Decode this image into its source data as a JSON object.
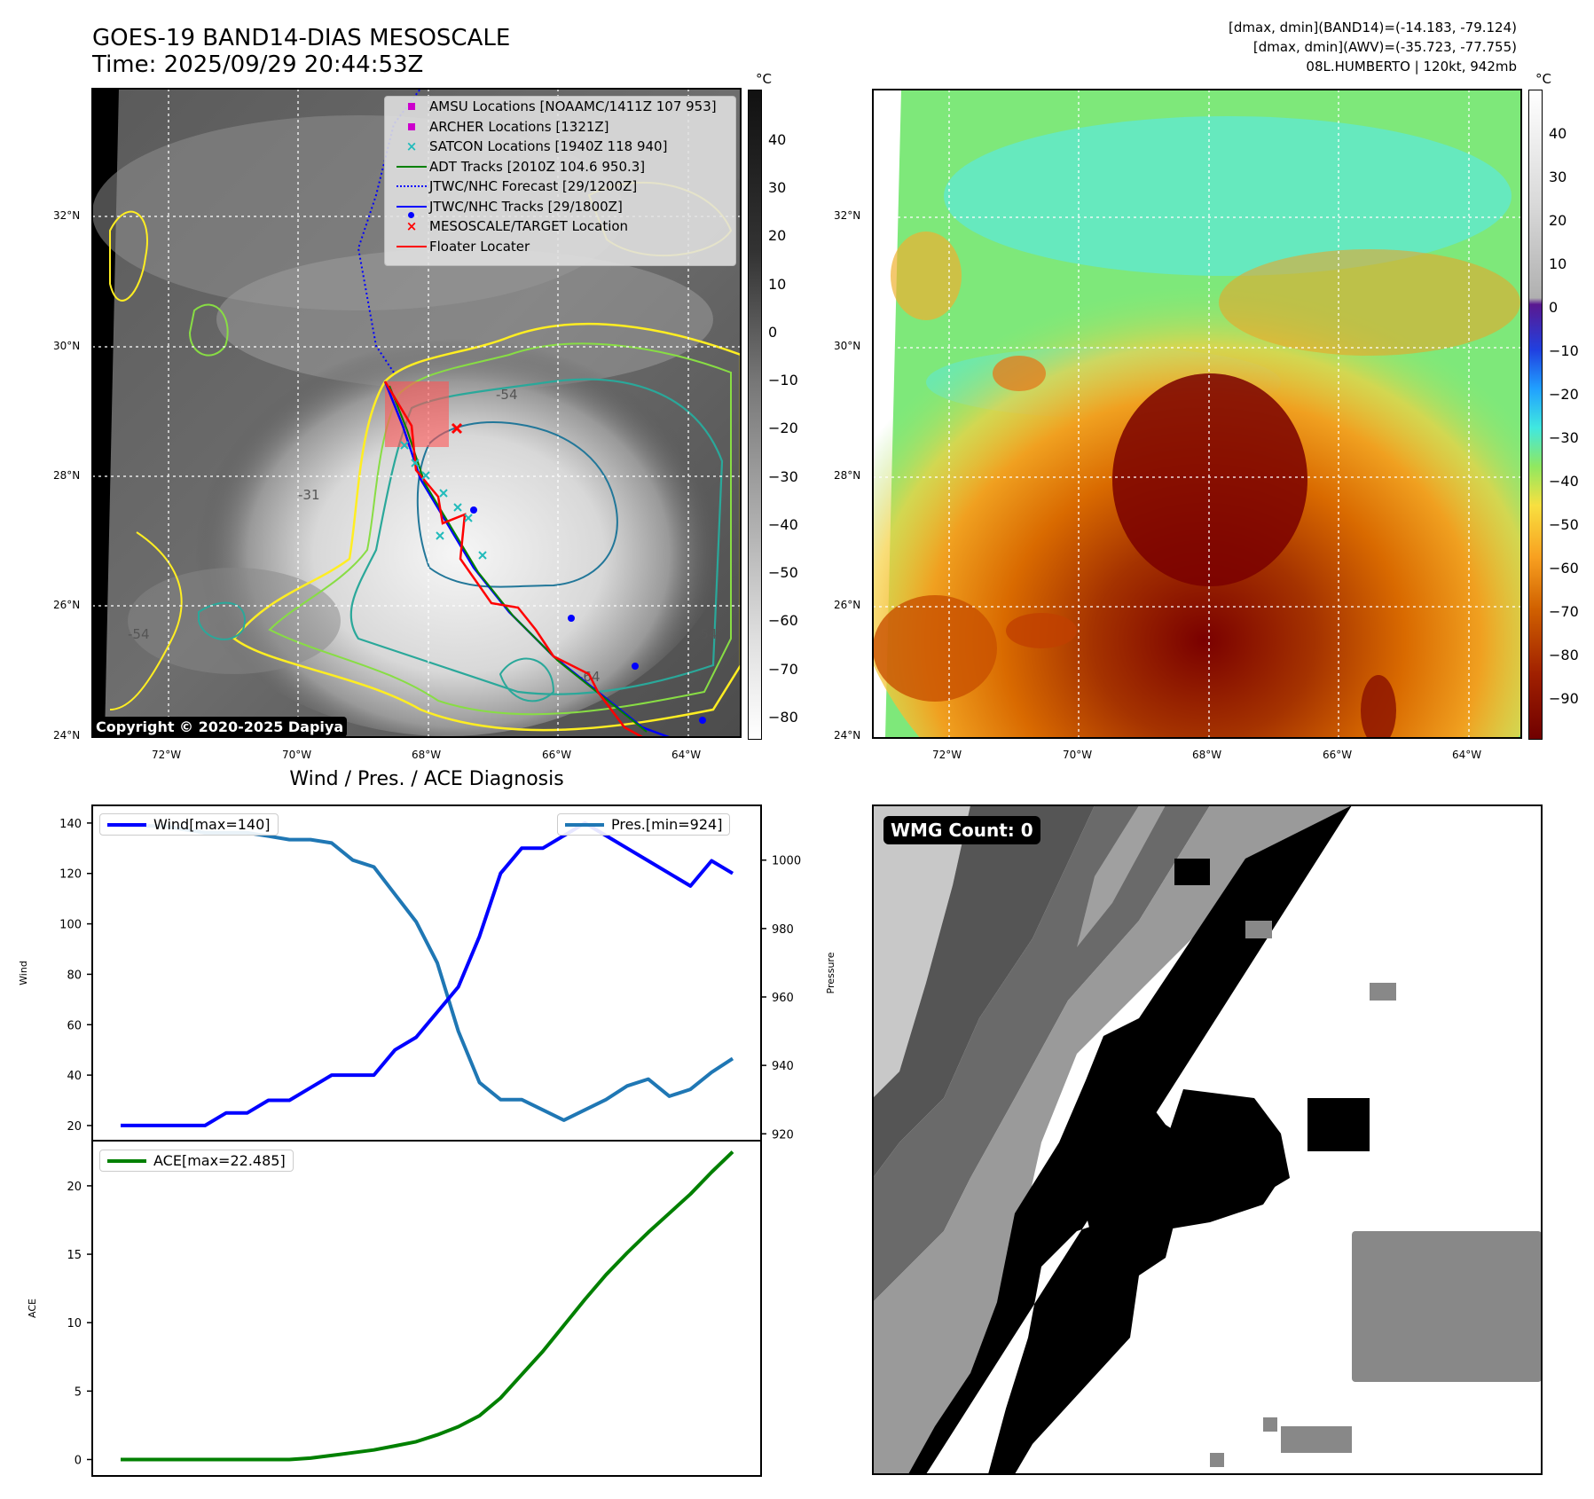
{
  "header": {
    "title_line1": "GOES-19 BAND14-DIAS MESOSCALE",
    "title_line2": "Time: 2025/09/29 20:44:53Z",
    "stats_line1": "[dmax, dmin](BAND14)=(-14.183, -79.124)",
    "stats_line2": "[dmax, dmin](AWV)=(-35.723, -77.755)",
    "stats_line3": "08L.HUMBERTO | 120kt, 942mb"
  },
  "left_map": {
    "colorbar_unit": "°C",
    "colorbar_ticks": [
      "40",
      "30",
      "20",
      "10",
      "0",
      "−10",
      "−20",
      "−30",
      "−40",
      "−50",
      "−60",
      "−70",
      "−80"
    ],
    "lat_labels": [
      "32°N",
      "30°N",
      "28°N",
      "26°N",
      "24°N"
    ],
    "lon_labels": [
      "72°W",
      "70°W",
      "68°W",
      "66°W",
      "64°W"
    ],
    "contour_labels": [
      "-54",
      "-31",
      "-54",
      "-54",
      "-64",
      "-54"
    ],
    "copyright": "Copyright © 2020-2025 Dapiya",
    "legend": [
      {
        "label": "AMSU Locations [NOAAMC/1411Z 107 953]",
        "icon": "magenta-square",
        "color": "#cc00cc"
      },
      {
        "label": "ARCHER Locations [1321Z]",
        "icon": "magenta-square",
        "color": "#cc00cc"
      },
      {
        "label": "SATCON Locations [1940Z 118 940]",
        "icon": "cyan-x",
        "color": "#22bbbb"
      },
      {
        "label": "ADT Tracks [2010Z 104.6 950.3]",
        "icon": "green-line",
        "color": "#008000"
      },
      {
        "label": "JTWC/NHC Forecast [29/1200Z]",
        "icon": "blue-dotted-line",
        "color": "#0000ff"
      },
      {
        "label": "JTWC/NHC Tracks [29/1800Z]",
        "icon": "blue-line-dot",
        "color": "#0000ff"
      },
      {
        "label": "MESOSCALE/TARGET Location",
        "icon": "red-x",
        "color": "#ff0000"
      },
      {
        "label": "Floater Locater",
        "icon": "red-line",
        "color": "#ff0000"
      }
    ]
  },
  "right_map": {
    "colorbar_unit": "°C",
    "colorbar_ticks": [
      "40",
      "30",
      "20",
      "10",
      "0",
      "−10",
      "−20",
      "−30",
      "−40",
      "−50",
      "−60",
      "−70",
      "−80",
      "−90"
    ],
    "lat_labels": [
      "32°N",
      "30°N",
      "28°N",
      "26°N",
      "24°N"
    ],
    "lon_labels": [
      "72°W",
      "70°W",
      "68°W",
      "66°W",
      "64°W"
    ]
  },
  "diagnosis": {
    "wind_legend": "Wind[max=140]",
    "pres_legend": "Pres.[min=924]",
    "ace_legend": "ACE[max=22.485]",
    "colors": {
      "wind": "#0000ff",
      "pres": "#1f77b4",
      "ace": "#008000"
    }
  },
  "wmg_panel": {
    "label": "WMG Count: 0"
  },
  "chart_data": [
    {
      "type": "line",
      "title": "Wind / Pres. / ACE Diagnosis",
      "ylabel": "Wind",
      "ylabel_right": "Pressure",
      "ylim": [
        14,
        147
      ],
      "ylim_right": [
        918,
        1016
      ],
      "yticks": [
        20,
        40,
        60,
        80,
        100,
        120,
        140
      ],
      "yticks_right": [
        920,
        940,
        960,
        980,
        1000
      ],
      "series": [
        {
          "name": "Wind[max=140]",
          "axis": "left",
          "values": [
            20,
            20,
            20,
            20,
            20,
            25,
            25,
            30,
            30,
            35,
            40,
            40,
            40,
            50,
            55,
            65,
            75,
            95,
            120,
            130,
            130,
            135,
            140,
            135,
            130,
            125,
            120,
            115,
            125,
            120
          ]
        },
        {
          "name": "Pres.[min=924]",
          "axis": "right",
          "values": [
            1010,
            1010,
            1010,
            1009,
            1008,
            1008,
            1008,
            1007,
            1006,
            1006,
            1005,
            1000,
            998,
            990,
            982,
            970,
            950,
            935,
            930,
            930,
            927,
            924,
            927,
            930,
            934,
            936,
            931,
            933,
            938,
            942
          ]
        }
      ]
    },
    {
      "type": "line",
      "ylabel": "ACE",
      "ylim": [
        -1.2,
        23.3
      ],
      "yticks": [
        0,
        5,
        10,
        15,
        20
      ],
      "series": [
        {
          "name": "ACE[max=22.485]",
          "values": [
            0,
            0,
            0,
            0,
            0,
            0,
            0,
            0,
            0,
            0.1,
            0.3,
            0.5,
            0.7,
            1.0,
            1.3,
            1.8,
            2.4,
            3.2,
            4.5,
            6.2,
            7.9,
            9.8,
            11.7,
            13.5,
            15.1,
            16.6,
            18.0,
            19.4,
            21.0,
            22.485
          ]
        }
      ]
    }
  ]
}
